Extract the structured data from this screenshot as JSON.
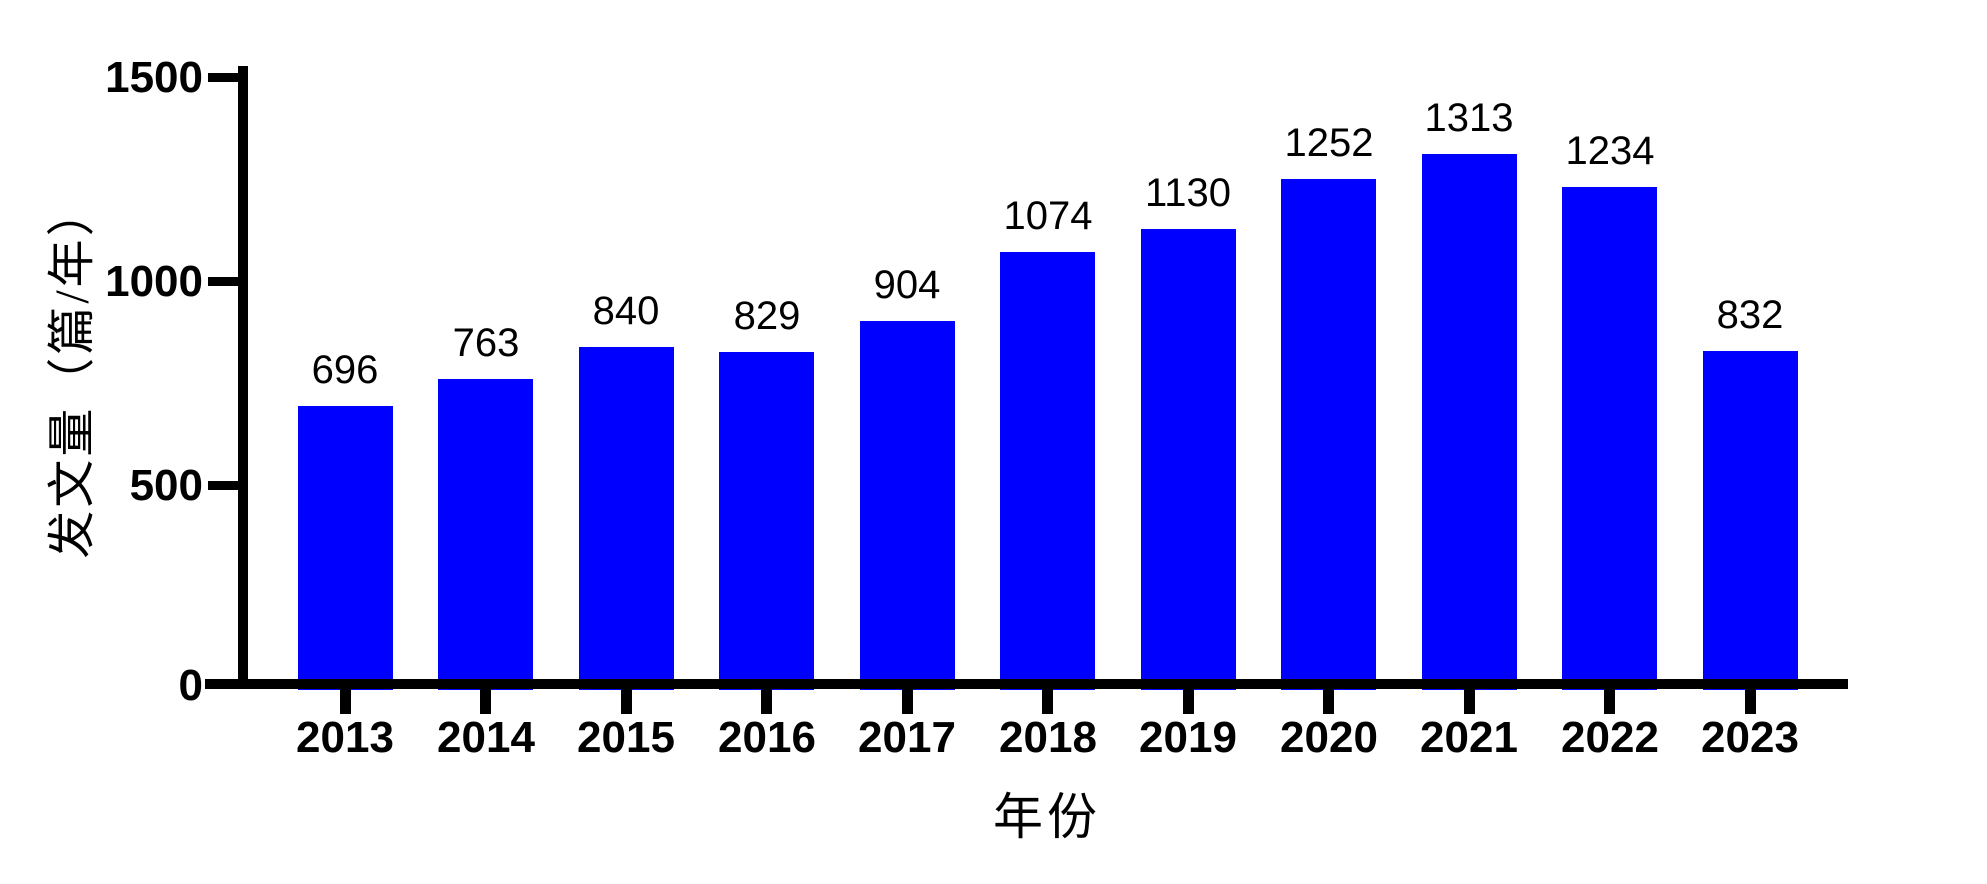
{
  "chart_data": {
    "type": "bar",
    "title": "",
    "xlabel": "年份",
    "ylabel": "发文量（篇/年）",
    "categories": [
      "2013",
      "2014",
      "2015",
      "2016",
      "2017",
      "2018",
      "2019",
      "2020",
      "2021",
      "2022",
      "2023"
    ],
    "values": [
      696,
      763,
      840,
      829,
      904,
      1074,
      1130,
      1252,
      1313,
      1234,
      832
    ],
    "series_name": "发文量",
    "ylim": [
      0,
      1500
    ],
    "yticks": [
      0,
      500,
      1000,
      1500
    ],
    "ytick_labels": [
      "0",
      "500",
      "1000",
      "1500"
    ],
    "grid": false,
    "legend": null,
    "value_labels_shown": true,
    "bar_color": "#0000FF",
    "axis_color": "#000000",
    "text_color": "#000000",
    "background_color": "#FFFFFF"
  }
}
